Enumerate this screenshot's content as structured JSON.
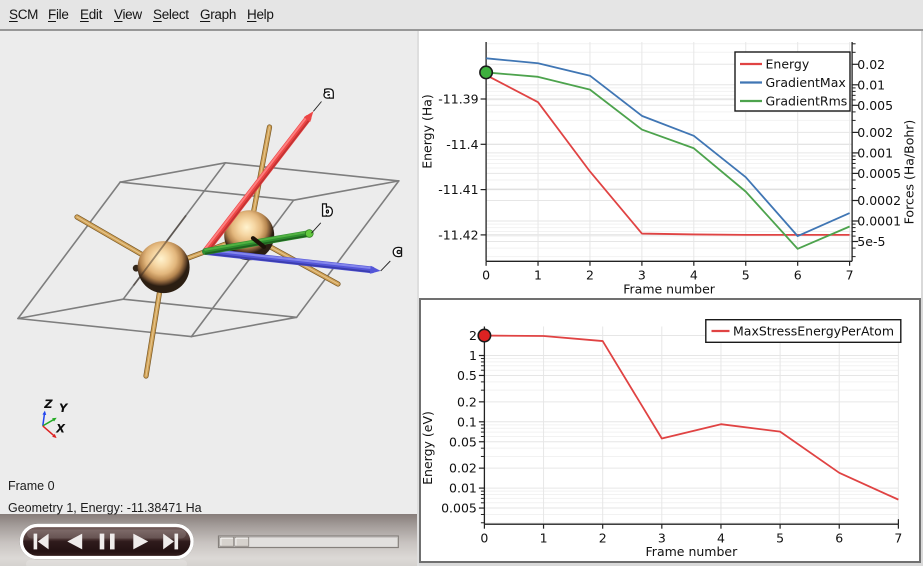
{
  "window": {
    "background": "#ececec",
    "menubar_background": "#e5e5e5"
  },
  "menu": {
    "items": [
      {
        "label": "SCM",
        "mnemonic_index": 0
      },
      {
        "label": "File",
        "mnemonic_index": 0
      },
      {
        "label": "Edit",
        "mnemonic_index": 0
      },
      {
        "label": "View",
        "mnemonic_index": 0
      },
      {
        "label": "Select",
        "mnemonic_index": 0
      },
      {
        "label": "Graph",
        "mnemonic_index": 0
      },
      {
        "label": "Help",
        "mnemonic_index": 0
      }
    ]
  },
  "viewer": {
    "frame_label": "Frame 0",
    "status_label": "Geometry 1, Energy: -11.38471 Ha",
    "lattice_vector_labels": {
      "a": "a",
      "b": "b",
      "c": "c"
    },
    "orientation_axis_labels": {
      "x": "X",
      "y": "Y",
      "z": "Z"
    },
    "colors": {
      "background": "#ececec",
      "atom": "#e3bd8c",
      "bond": "#cfa055",
      "cell_edge": "#7e7e7e",
      "vector_a": "#ec4545",
      "vector_b": "#2f8f2f",
      "vector_c": "#5456d8",
      "axis_x": "#dd2222",
      "axis_y": "#22aa22",
      "axis_z": "#2244ee"
    }
  },
  "playback": {
    "buttons": [
      {
        "name": "skip-to-start"
      },
      {
        "name": "step-back"
      },
      {
        "name": "pause"
      },
      {
        "name": "play"
      },
      {
        "name": "skip-to-end"
      }
    ],
    "slider": {
      "value": 0
    }
  },
  "chart_data": [
    {
      "type": "line",
      "x": [
        0,
        1,
        2,
        3,
        4,
        5,
        6,
        7
      ],
      "x_tick_labels": [
        "0",
        "1",
        "2",
        "3",
        "4",
        "5",
        "6",
        "7"
      ],
      "xlabel": "Frame number",
      "left_axis": {
        "label": "Energy (Ha)",
        "scale": "linear",
        "tick_values": [
          -11.39,
          -11.4,
          -11.41,
          -11.42
        ],
        "tick_labels": [
          "-11.39",
          "-11.4",
          "-11.41",
          "-11.42"
        ]
      },
      "right_axis": {
        "label": "Forces (Ha/Bohr)",
        "scale": "log",
        "tick_values": [
          0.02,
          0.01,
          0.005,
          0.002,
          0.001,
          0.0005,
          0.0002,
          0.0001,
          5e-05
        ],
        "tick_labels": [
          "0.02",
          "0.01",
          "0.005",
          "0.002",
          "0.001",
          "0.0005",
          "0.0002",
          "0.0001",
          "5e-5"
        ]
      },
      "series": [
        {
          "name": "Energy",
          "axis": "left",
          "color": "#e04343",
          "values": [
            -11.38471,
            -11.3907,
            -11.406,
            -11.4197,
            -11.4199,
            -11.42,
            -11.42,
            -11.42
          ]
        },
        {
          "name": "GradientMax",
          "axis": "right",
          "color": "#4076b4",
          "values": [
            0.0245,
            0.0207,
            0.0136,
            0.0035,
            0.00178,
            0.00044,
            6e-05,
            0.000131
          ]
        },
        {
          "name": "GradientRms",
          "axis": "right",
          "color": "#4da34d",
          "values": [
            0.0152,
            0.0131,
            0.0085,
            0.0022,
            0.00117,
            0.00027,
            3.9e-05,
            8.3e-05
          ]
        }
      ],
      "legend": {
        "entries": [
          "Energy",
          "GradientMax",
          "GradientRms"
        ],
        "position": "top-right"
      },
      "marker": {
        "x": 0,
        "series": "GradientRms",
        "fill": "#3db03d",
        "outline": "#1a1a1a"
      },
      "grid": true
    },
    {
      "type": "line",
      "x": [
        0,
        1,
        2,
        3,
        4,
        5,
        6,
        7
      ],
      "x_tick_labels": [
        "0",
        "1",
        "2",
        "3",
        "4",
        "5",
        "6",
        "7"
      ],
      "xlabel": "Frame number",
      "left_axis": {
        "label": "Energy (eV)",
        "scale": "log",
        "tick_values": [
          2,
          1,
          0.5,
          0.2,
          0.1,
          0.05,
          0.02,
          0.01,
          0.005
        ],
        "tick_labels": [
          "2",
          "1",
          "0.5",
          "0.2",
          "0.1",
          "0.05",
          "0.02",
          "0.01",
          "0.005"
        ]
      },
      "series": [
        {
          "name": "MaxStressEnergyPerAtom",
          "axis": "left",
          "color": "#e04343",
          "values": [
            2.0,
            1.97,
            1.65,
            0.056,
            0.092,
            0.071,
            0.017,
            0.0067
          ]
        }
      ],
      "legend": {
        "entries": [
          "MaxStressEnergyPerAtom"
        ],
        "position": "top-right"
      },
      "marker": {
        "x": 0,
        "series": "MaxStressEnergyPerAtom",
        "fill": "#dd2222",
        "outline": "#1a1a1a"
      },
      "grid": true
    }
  ]
}
